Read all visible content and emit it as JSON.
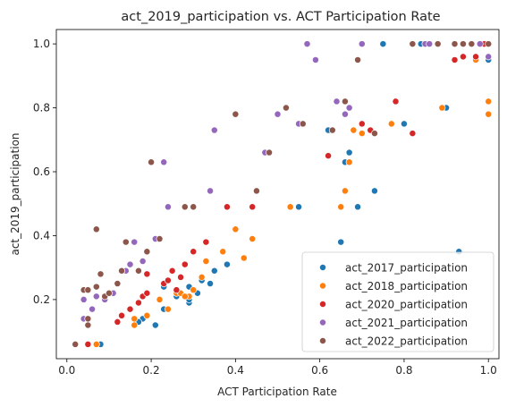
{
  "chart_data": {
    "type": "scatter",
    "title": "act_2019_participation vs. ACT Participation Rate",
    "xlabel": "ACT Participation Rate",
    "ylabel": "act_2019_participation",
    "xlim": [
      -0.025,
      1.025
    ],
    "ylim": [
      0.015,
      1.045
    ],
    "xticks": [
      0.0,
      0.2,
      0.4,
      0.6,
      0.8,
      1.0
    ],
    "xtick_labels": [
      "0.0",
      "0.2",
      "0.4",
      "0.6",
      "0.8",
      "1.0"
    ],
    "yticks": [
      0.2,
      0.4,
      0.6,
      0.8,
      1.0
    ],
    "ytick_labels": [
      "0.2",
      "0.4",
      "0.6",
      "0.8",
      "1.0"
    ],
    "grid": false,
    "legend_position": "bottom-right",
    "series": [
      {
        "name": "act_2017_participation",
        "color": "#1f77b4",
        "points": [
          [
            0.08,
            0.06
          ],
          [
            0.18,
            0.14
          ],
          [
            0.21,
            0.12
          ],
          [
            0.23,
            0.17
          ],
          [
            0.26,
            0.21
          ],
          [
            0.29,
            0.19
          ],
          [
            0.29,
            0.2
          ],
          [
            0.3,
            0.23
          ],
          [
            0.32,
            0.26
          ],
          [
            0.34,
            0.25
          ],
          [
            0.35,
            0.29
          ],
          [
            0.38,
            0.31
          ],
          [
            0.4,
            0.42
          ],
          [
            0.29,
            0.24
          ],
          [
            0.31,
            0.22
          ],
          [
            0.55,
            0.49
          ],
          [
            0.62,
            0.73
          ],
          [
            0.65,
            0.38
          ],
          [
            0.66,
            0.63
          ],
          [
            0.67,
            0.66
          ],
          [
            0.69,
            0.49
          ],
          [
            0.73,
            0.54
          ],
          [
            0.75,
            1.0
          ],
          [
            0.8,
            0.75
          ],
          [
            0.9,
            0.8
          ],
          [
            0.93,
            0.35
          ],
          [
            0.84,
            1.0
          ],
          [
            0.96,
            1.0
          ],
          [
            1.0,
            0.95
          ],
          [
            0.99,
            1.0
          ],
          [
            0.17,
            0.13
          ],
          [
            0.23,
            0.24
          ]
        ]
      },
      {
        "name": "act_2018_participation",
        "color": "#ff7f0e",
        "points": [
          [
            0.07,
            0.06
          ],
          [
            0.16,
            0.12
          ],
          [
            0.16,
            0.14
          ],
          [
            0.19,
            0.15
          ],
          [
            0.22,
            0.2
          ],
          [
            0.24,
            0.17
          ],
          [
            0.26,
            0.22
          ],
          [
            0.27,
            0.22
          ],
          [
            0.29,
            0.21
          ],
          [
            0.3,
            0.23
          ],
          [
            0.32,
            0.27
          ],
          [
            0.33,
            0.32
          ],
          [
            0.37,
            0.35
          ],
          [
            0.4,
            0.42
          ],
          [
            0.42,
            0.33
          ],
          [
            0.44,
            0.39
          ],
          [
            0.53,
            0.49
          ],
          [
            0.65,
            0.49
          ],
          [
            0.66,
            0.54
          ],
          [
            0.67,
            0.63
          ],
          [
            0.68,
            0.73
          ],
          [
            0.7,
            0.72
          ],
          [
            0.77,
            0.75
          ],
          [
            0.89,
            0.8
          ],
          [
            0.97,
            0.96
          ],
          [
            1.0,
            0.82
          ],
          [
            1.0,
            0.78
          ],
          [
            0.86,
            1.0
          ],
          [
            0.97,
            0.95
          ],
          [
            0.28,
            0.21
          ]
        ]
      },
      {
        "name": "act_2020_participation",
        "color": "#d62728",
        "points": [
          [
            0.05,
            0.06
          ],
          [
            0.12,
            0.13
          ],
          [
            0.15,
            0.17
          ],
          [
            0.17,
            0.19
          ],
          [
            0.18,
            0.21
          ],
          [
            0.19,
            0.22
          ],
          [
            0.19,
            0.28
          ],
          [
            0.23,
            0.25
          ],
          [
            0.24,
            0.26
          ],
          [
            0.25,
            0.29
          ],
          [
            0.27,
            0.27
          ],
          [
            0.28,
            0.31
          ],
          [
            0.3,
            0.35
          ],
          [
            0.33,
            0.38
          ],
          [
            0.38,
            0.49
          ],
          [
            0.44,
            0.49
          ],
          [
            0.62,
            0.65
          ],
          [
            0.7,
            0.75
          ],
          [
            0.72,
            0.73
          ],
          [
            0.78,
            0.82
          ],
          [
            0.82,
            0.72
          ],
          [
            0.92,
            0.95
          ],
          [
            0.94,
            0.96
          ],
          [
            0.97,
            0.96
          ],
          [
            0.85,
            1.0
          ],
          [
            0.99,
            1.0
          ],
          [
            0.13,
            0.15
          ],
          [
            0.26,
            0.23
          ]
        ]
      },
      {
        "name": "act_2021_participation",
        "color": "#9467bd",
        "points": [
          [
            0.04,
            0.2
          ],
          [
            0.04,
            0.14
          ],
          [
            0.06,
            0.17
          ],
          [
            0.07,
            0.21
          ],
          [
            0.09,
            0.2
          ],
          [
            0.11,
            0.22
          ],
          [
            0.14,
            0.29
          ],
          [
            0.15,
            0.31
          ],
          [
            0.16,
            0.38
          ],
          [
            0.18,
            0.32
          ],
          [
            0.19,
            0.35
          ],
          [
            0.21,
            0.39
          ],
          [
            0.23,
            0.63
          ],
          [
            0.24,
            0.49
          ],
          [
            0.34,
            0.54
          ],
          [
            0.35,
            0.73
          ],
          [
            0.47,
            0.66
          ],
          [
            0.5,
            0.78
          ],
          [
            0.55,
            0.75
          ],
          [
            0.57,
            1.0
          ],
          [
            0.59,
            0.95
          ],
          [
            0.64,
            0.82
          ],
          [
            0.66,
            0.78
          ],
          [
            0.67,
            0.8
          ],
          [
            0.7,
            1.0
          ],
          [
            0.85,
            1.0
          ],
          [
            0.86,
            1.0
          ],
          [
            0.98,
            1.0
          ],
          [
            1.0,
            0.96
          ]
        ]
      },
      {
        "name": "act_2022_participation",
        "color": "#8c564b",
        "points": [
          [
            0.02,
            0.06
          ],
          [
            0.04,
            0.23
          ],
          [
            0.05,
            0.12
          ],
          [
            0.05,
            0.14
          ],
          [
            0.05,
            0.23
          ],
          [
            0.07,
            0.24
          ],
          [
            0.07,
            0.42
          ],
          [
            0.08,
            0.28
          ],
          [
            0.09,
            0.21
          ],
          [
            0.1,
            0.22
          ],
          [
            0.12,
            0.25
          ],
          [
            0.13,
            0.29
          ],
          [
            0.14,
            0.38
          ],
          [
            0.17,
            0.29
          ],
          [
            0.19,
            0.35
          ],
          [
            0.2,
            0.63
          ],
          [
            0.22,
            0.39
          ],
          [
            0.28,
            0.49
          ],
          [
            0.3,
            0.49
          ],
          [
            0.4,
            0.78
          ],
          [
            0.45,
            0.54
          ],
          [
            0.48,
            0.66
          ],
          [
            0.52,
            0.8
          ],
          [
            0.56,
            0.75
          ],
          [
            0.63,
            0.73
          ],
          [
            0.66,
            0.82
          ],
          [
            0.69,
            0.95
          ],
          [
            0.73,
            0.72
          ],
          [
            0.82,
            1.0
          ],
          [
            0.88,
            1.0
          ],
          [
            0.92,
            1.0
          ],
          [
            0.94,
            1.0
          ],
          [
            0.96,
            1.0
          ],
          [
            1.0,
            1.0
          ]
        ]
      }
    ]
  }
}
